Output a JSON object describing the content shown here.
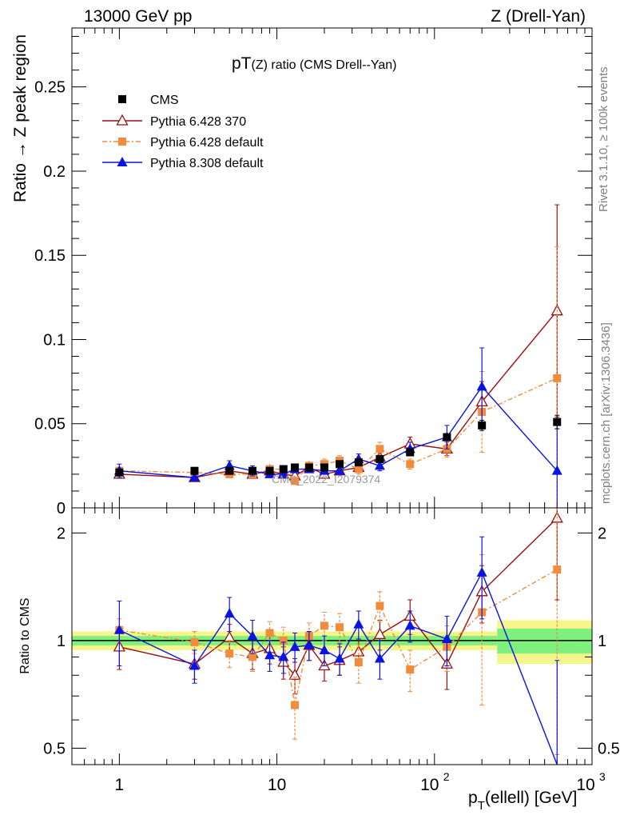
{
  "header": {
    "left": "13000 GeV pp",
    "right": "Z (Drell-Yan)"
  },
  "side_notes": {
    "rivet": "Rivet 3.1.10, ≥ 100k events",
    "mcplots": "mcplots.cern.ch [arXiv:1306.3436]"
  },
  "chart_data": [
    {
      "type": "scatter",
      "title": "pT(Z) ratio (CMS Drell--Yan)",
      "title_main": "pT",
      "title_sub": "(Z) ratio (CMS Drell--Yan)",
      "ylabel": "Ratio → Z peak region",
      "xscale": "log",
      "xlim": [
        0.5,
        1000
      ],
      "ylim": [
        0,
        0.285
      ],
      "yticks": [
        "0",
        "0.05",
        "0.1",
        "0.15",
        "0.2",
        "0.25"
      ],
      "watermark": "CMS_2022_I2079374",
      "legend_position": "top-left",
      "series": [
        {
          "name": "CMS",
          "color": "#000000",
          "marker": "square",
          "x": [
            1,
            3,
            5,
            7,
            9,
            11,
            13,
            16,
            20,
            25,
            33,
            45,
            70,
            120,
            200,
            600
          ],
          "y": [
            0.021,
            0.022,
            0.022,
            0.022,
            0.022,
            0.023,
            0.024,
            0.024,
            0.024,
            0.026,
            0.027,
            0.029,
            0.033,
            0.042,
            0.049,
            0.051
          ],
          "yerr": [
            0.001,
            0.001,
            0.001,
            0.001,
            0.001,
            0.001,
            0.001,
            0.001,
            0.001,
            0.001,
            0.001,
            0.001,
            0.002,
            0.002,
            0.003,
            0.004
          ]
        },
        {
          "name": "Pythia 6.428 370",
          "color": "#9b0e0e",
          "marker": "open-triangle",
          "x": [
            1,
            3,
            5,
            7,
            9,
            11,
            13,
            16,
            20,
            25,
            33,
            45,
            70,
            120,
            200,
            600
          ],
          "y": [
            0.02,
            0.018,
            0.022,
            0.02,
            0.022,
            0.02,
            0.019,
            0.024,
            0.02,
            0.022,
            0.024,
            0.03,
            0.038,
            0.035,
            0.063,
            0.117
          ],
          "yerr": [
            0.002,
            0.002,
            0.002,
            0.002,
            0.002,
            0.002,
            0.002,
            0.002,
            0.002,
            0.002,
            0.002,
            0.003,
            0.004,
            0.004,
            0.012,
            0.063
          ]
        },
        {
          "name": "Pythia 6.428 default",
          "color": "#f08c3c",
          "marker": "square",
          "dashed": true,
          "x": [
            1,
            3,
            5,
            7,
            9,
            11,
            13,
            16,
            20,
            25,
            33,
            45,
            70,
            120,
            200,
            600
          ],
          "y": [
            0.022,
            0.021,
            0.02,
            0.02,
            0.023,
            0.023,
            0.016,
            0.025,
            0.026,
            0.028,
            0.023,
            0.035,
            0.026,
            0.035,
            0.057,
            0.077
          ],
          "yerr": [
            0.002,
            0.002,
            0.002,
            0.002,
            0.002,
            0.002,
            0.002,
            0.002,
            0.003,
            0.003,
            0.003,
            0.004,
            0.003,
            0.005,
            0.024,
            0.078
          ]
        },
        {
          "name": "Pythia 8.308 default",
          "color": "#0a14e0",
          "marker": "triangle",
          "x": [
            1,
            3,
            5,
            7,
            9,
            11,
            13,
            16,
            20,
            25,
            33,
            45,
            70,
            120,
            200,
            600
          ],
          "y": [
            0.022,
            0.018,
            0.025,
            0.022,
            0.02,
            0.02,
            0.023,
            0.023,
            0.022,
            0.022,
            0.029,
            0.025,
            0.035,
            0.042,
            0.072,
            0.022
          ],
          "yerr": [
            0.004,
            0.002,
            0.003,
            0.003,
            0.002,
            0.002,
            0.002,
            0.002,
            0.002,
            0.002,
            0.003,
            0.003,
            0.004,
            0.007,
            0.023,
            0.025
          ]
        }
      ]
    },
    {
      "type": "scatter",
      "title": "",
      "ylabel": "Ratio to CMS",
      "xlabel_main": "p",
      "xlabel_sub": "T",
      "xlabel_rest": "(ellell) [GeV]",
      "xscale": "log",
      "xlim": [
        0.5,
        1000
      ],
      "yscale": "log",
      "ylim": [
        0.45,
        2.35
      ],
      "yticks": [
        "0.5",
        "1",
        "2"
      ],
      "xticks": [
        "1",
        "10",
        "10",
        "10"
      ],
      "xtick_exponents": [
        "",
        "",
        "2",
        "3"
      ],
      "band": {
        "color_inner": "#7df07d",
        "color_outer": "#f5f58c",
        "edges": [
          0.5,
          250,
          1000
        ],
        "inner": [
          0.03,
          0.08
        ],
        "outer": [
          0.06,
          0.14
        ]
      },
      "series": [
        {
          "name": "Pythia 6.428 370",
          "color": "#9b0e0e",
          "marker": "open-triangle",
          "x": [
            1,
            3,
            5,
            7,
            9,
            11,
            13,
            16,
            20,
            25,
            33,
            45,
            70,
            120,
            200,
            600
          ],
          "y": [
            0.96,
            0.86,
            1.02,
            0.92,
            0.95,
            0.87,
            0.8,
            0.97,
            0.85,
            0.88,
            0.93,
            1.04,
            1.17,
            0.86,
            1.37,
            2.2
          ],
          "yerr": [
            0.13,
            0.08,
            0.09,
            0.09,
            0.09,
            0.09,
            0.09,
            0.09,
            0.08,
            0.08,
            0.08,
            0.1,
            0.13,
            0.13,
            0.25,
            0.9
          ]
        },
        {
          "name": "Pythia 6.428 default",
          "color": "#f08c3c",
          "marker": "square",
          "dashed": true,
          "x": [
            1,
            3,
            5,
            7,
            9,
            11,
            13,
            16,
            20,
            25,
            33,
            45,
            70,
            120,
            200,
            600
          ],
          "y": [
            1.07,
            0.99,
            0.92,
            0.9,
            1.05,
            1.0,
            0.66,
            1.03,
            1.1,
            1.09,
            0.87,
            1.25,
            0.83,
            0.96,
            1.2,
            1.58
          ],
          "yerr": [
            0.08,
            0.07,
            0.08,
            0.08,
            0.08,
            0.09,
            0.13,
            0.09,
            0.1,
            0.1,
            0.11,
            0.12,
            0.11,
            0.14,
            0.54,
            1.1
          ]
        },
        {
          "name": "Pythia 8.308 default",
          "color": "#0a14e0",
          "marker": "triangle",
          "x": [
            1,
            3,
            5,
            7,
            9,
            11,
            13,
            16,
            20,
            25,
            33,
            45,
            70,
            120,
            200,
            600
          ],
          "y": [
            1.07,
            0.85,
            1.19,
            1.03,
            0.91,
            0.9,
            0.96,
            0.97,
            0.94,
            0.89,
            1.11,
            0.89,
            1.1,
            1.01,
            1.55,
            0.43
          ],
          "yerr": [
            0.22,
            0.09,
            0.13,
            0.11,
            0.09,
            0.09,
            0.09,
            0.09,
            0.09,
            0.09,
            0.1,
            0.11,
            0.11,
            0.16,
            0.4,
            0.45
          ]
        }
      ]
    }
  ]
}
